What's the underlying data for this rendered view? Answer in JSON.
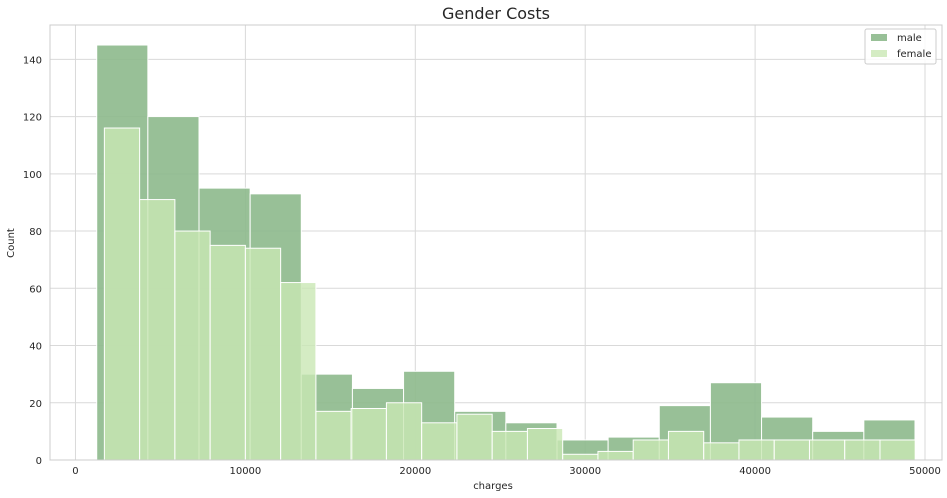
{
  "chart_data": {
    "type": "bar",
    "subtype": "histogram",
    "title": "Gender Costs",
    "xlabel": "charges",
    "ylabel": "Count",
    "xlim": [
      -1500,
      51000
    ],
    "ylim": [
      0,
      152
    ],
    "grid": true,
    "legend_position": "top-right",
    "x_ticks": [
      0,
      10000,
      20000,
      30000,
      40000,
      50000
    ],
    "x_tick_labels": [
      "0",
      "10000",
      "20000",
      "30000",
      "40000",
      "50000"
    ],
    "y_ticks": [
      0,
      20,
      40,
      60,
      80,
      100,
      120,
      140
    ],
    "y_tick_labels": [
      "0",
      "20",
      "40",
      "60",
      "80",
      "100",
      "120",
      "140"
    ],
    "series": [
      {
        "name": "male",
        "color": "#8db98c",
        "bin_start": 1250,
        "bin_width": 3010,
        "values": [
          145,
          120,
          95,
          93,
          30,
          25,
          31,
          17,
          13,
          7,
          8,
          19,
          27,
          15,
          10,
          14
        ]
      },
      {
        "name": "female",
        "color": "#c9e7b4",
        "bin_start": 1700,
        "bin_width": 2075,
        "values": [
          116,
          91,
          80,
          75,
          74,
          62,
          17,
          18,
          20,
          13,
          16,
          10,
          11,
          2,
          3,
          7,
          10,
          6,
          7,
          7,
          7,
          7,
          7
        ]
      }
    ]
  }
}
